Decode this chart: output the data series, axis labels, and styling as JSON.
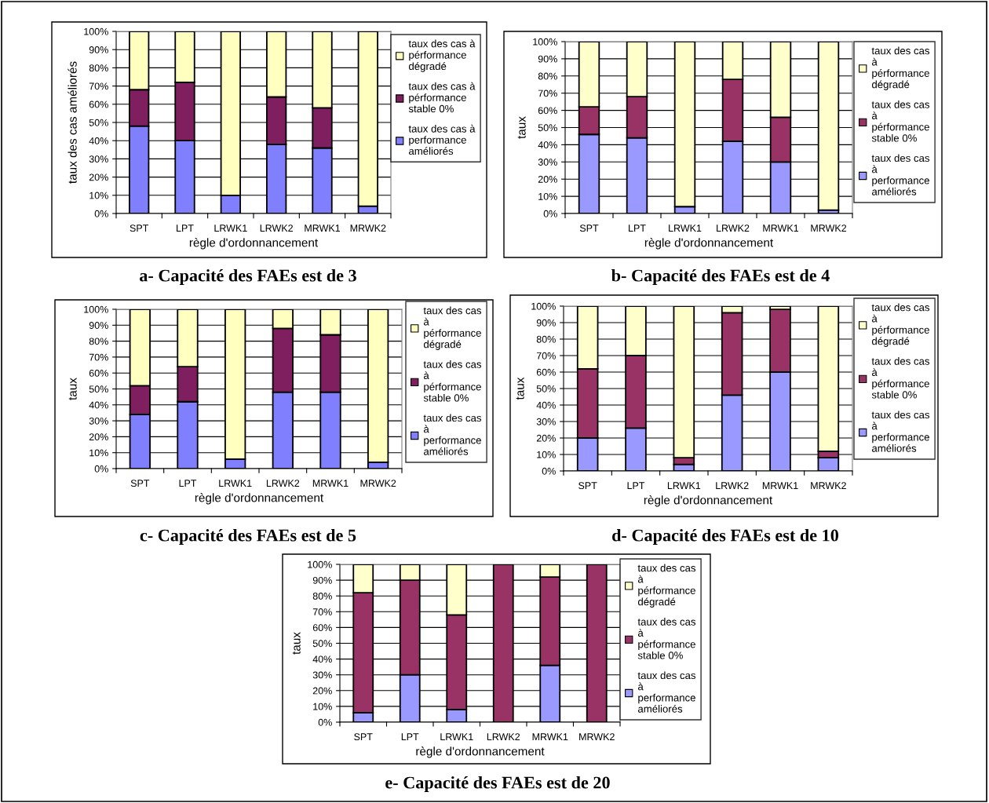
{
  "chart_data": [
    {
      "type": "bar",
      "stacked": true,
      "title": "a- Capacité des FAEs est de 3",
      "xlabel": "règle d'ordonnancement",
      "ylabel": "taux des cas améliorés",
      "categories": [
        "SPT",
        "LPT",
        "LRWK1",
        "LRWK2",
        "MRWK1",
        "MRWK2"
      ],
      "ylim": [
        0,
        100
      ],
      "yticks": [
        {
          "value": 0,
          "label": "0%"
        },
        {
          "value": 10,
          "label": "10%"
        },
        {
          "value": 20,
          "label": "20%"
        },
        {
          "value": 30,
          "label": "30%"
        },
        {
          "value": 40,
          "label": "40%"
        },
        {
          "value": 50,
          "label": "50%"
        },
        {
          "value": 60,
          "label": "60%"
        },
        {
          "value": 70,
          "label": "70%"
        },
        {
          "value": 80,
          "label": "80%"
        },
        {
          "value": 90,
          "label": "90%"
        },
        {
          "value": 100,
          "label": "100%"
        }
      ],
      "grid": "y",
      "legend": "right",
      "series": [
        {
          "name": "taux des cas à performance améliorés",
          "color": "#8080ff",
          "values": [
            48,
            40,
            10,
            38,
            36,
            4
          ]
        },
        {
          "name": "taux des cas à pérformance stable 0%",
          "color": "#7f1f5f",
          "values": [
            20,
            32,
            0,
            26,
            22,
            0
          ]
        },
        {
          "name": "taux des cas à pérformance dégradé",
          "color": "#ffffc0",
          "values": [
            32,
            28,
            90,
            36,
            42,
            96
          ]
        }
      ]
    },
    {
      "type": "bar",
      "stacked": true,
      "title": "b- Capacité des FAEs est de 4",
      "xlabel": "règle d'ordonnancement",
      "ylabel": "taux",
      "categories": [
        "SPT",
        "LPT",
        "LRWK1",
        "LRWK2",
        "MRWK1",
        "MRWK2"
      ],
      "ylim": [
        0,
        100
      ],
      "yticks": [
        {
          "value": 0,
          "label": "0%"
        },
        {
          "value": 10,
          "label": "10%"
        },
        {
          "value": 20,
          "label": "20%"
        },
        {
          "value": 30,
          "label": "30%"
        },
        {
          "value": 40,
          "label": "40%"
        },
        {
          "value": 50,
          "label": "50%"
        },
        {
          "value": 60,
          "label": "60%"
        },
        {
          "value": 70,
          "label": "70%"
        },
        {
          "value": 80,
          "label": "80%"
        },
        {
          "value": 90,
          "label": "90%"
        },
        {
          "value": 100,
          "label": "100%"
        }
      ],
      "grid": "y",
      "legend": "right",
      "series": [
        {
          "name": "taux des cas à performance améliorés",
          "color": "#9999ff",
          "values": [
            46,
            44,
            4,
            42,
            30,
            2
          ]
        },
        {
          "name": "taux des cas à pérformance stable 0%",
          "color": "#993366",
          "values": [
            16,
            24,
            0,
            36,
            26,
            0
          ]
        },
        {
          "name": "taux des cas à pérformance dégradé",
          "color": "#ffffcc",
          "values": [
            38,
            32,
            96,
            22,
            44,
            98
          ]
        }
      ]
    },
    {
      "type": "bar",
      "stacked": true,
      "title": "c- Capacité des FAEs est de 5",
      "xlabel": "règle d'ordonnancement",
      "ylabel": "taux",
      "categories": [
        "SPT",
        "LPT",
        "LRWK1",
        "LRWK2",
        "MRWK1",
        "MRWK2"
      ],
      "ylim": [
        0,
        100
      ],
      "yticks": [
        {
          "value": 0,
          "label": "0%"
        },
        {
          "value": 10,
          "label": "10%"
        },
        {
          "value": 20,
          "label": "20%"
        },
        {
          "value": 30,
          "label": "30%"
        },
        {
          "value": 40,
          "label": "40%"
        },
        {
          "value": 50,
          "label": "50%"
        },
        {
          "value": 60,
          "label": "60%"
        },
        {
          "value": 70,
          "label": "70%"
        },
        {
          "value": 80,
          "label": "80%"
        },
        {
          "value": 90,
          "label": "90%"
        },
        {
          "value": 100,
          "label": "100%"
        }
      ],
      "grid": "y",
      "legend": "right",
      "series": [
        {
          "name": "taux des cas à performance améliorés",
          "color": "#8080ff",
          "values": [
            34,
            42,
            6,
            48,
            48,
            4
          ]
        },
        {
          "name": "taux des cas à pérformance stable 0%",
          "color": "#7f1f5f",
          "values": [
            18,
            22,
            0,
            40,
            36,
            0
          ]
        },
        {
          "name": "taux des cas à pérformance dégradé",
          "color": "#ffffc0",
          "values": [
            48,
            36,
            94,
            12,
            16,
            96
          ]
        }
      ]
    },
    {
      "type": "bar",
      "stacked": true,
      "title": "d- Capacité des FAEs est de 10",
      "xlabel": "règle d'ordonnancement",
      "ylabel": "taux",
      "categories": [
        "SPT",
        "LPT",
        "LRWK1",
        "LRWK2",
        "MRWK1",
        "MRWK2"
      ],
      "ylim": [
        0,
        100
      ],
      "yticks": [
        {
          "value": 0,
          "label": "0%"
        },
        {
          "value": 10,
          "label": "10%"
        },
        {
          "value": 20,
          "label": "20%"
        },
        {
          "value": 30,
          "label": "30%"
        },
        {
          "value": 40,
          "label": "40%"
        },
        {
          "value": 50,
          "label": "50%"
        },
        {
          "value": 60,
          "label": "60%"
        },
        {
          "value": 70,
          "label": "70%"
        },
        {
          "value": 80,
          "label": "80%"
        },
        {
          "value": 90,
          "label": "90%"
        },
        {
          "value": 100,
          "label": "100%"
        }
      ],
      "grid": "y",
      "legend": "right",
      "series": [
        {
          "name": "taux des cas à performance améliorés",
          "color": "#9999ff",
          "values": [
            20,
            26,
            4,
            46,
            60,
            8
          ]
        },
        {
          "name": "taux des cas à pérformance stable 0%",
          "color": "#993366",
          "values": [
            42,
            44,
            4,
            50,
            38,
            4
          ]
        },
        {
          "name": "taux des cas à pérformance dégradé",
          "color": "#ffffcc",
          "values": [
            38,
            30,
            92,
            4,
            2,
            88
          ]
        }
      ]
    },
    {
      "type": "bar",
      "stacked": true,
      "title": "e- Capacité des FAEs est de 20",
      "xlabel": "règle d'ordonnancement",
      "ylabel": "taux",
      "categories": [
        "SPT",
        "LPT",
        "LRWK1",
        "LRWK2",
        "MRWK1",
        "MRWK2"
      ],
      "ylim": [
        0,
        100
      ],
      "yticks": [
        {
          "value": 0,
          "label": "0%"
        },
        {
          "value": 10,
          "label": "10%"
        },
        {
          "value": 20,
          "label": "20%"
        },
        {
          "value": 30,
          "label": "30%"
        },
        {
          "value": 40,
          "label": "40%"
        },
        {
          "value": 50,
          "label": "50%"
        },
        {
          "value": 60,
          "label": "60%"
        },
        {
          "value": 70,
          "label": "70%"
        },
        {
          "value": 80,
          "label": "80%"
        },
        {
          "value": 90,
          "label": "90%"
        },
        {
          "value": 100,
          "label": "100%"
        }
      ],
      "grid": "y",
      "legend": "right",
      "series": [
        {
          "name": "taux des cas à performance améliorés",
          "color": "#9999ff",
          "values": [
            6,
            30,
            8,
            0,
            36,
            0
          ]
        },
        {
          "name": "taux des cas à pérformance stable 0%",
          "color": "#993366",
          "values": [
            76,
            60,
            60,
            100,
            56,
            100
          ]
        },
        {
          "name": "taux des cas à pérformance dégradé",
          "color": "#ffffcc",
          "values": [
            18,
            10,
            32,
            0,
            8,
            0
          ]
        }
      ]
    }
  ]
}
